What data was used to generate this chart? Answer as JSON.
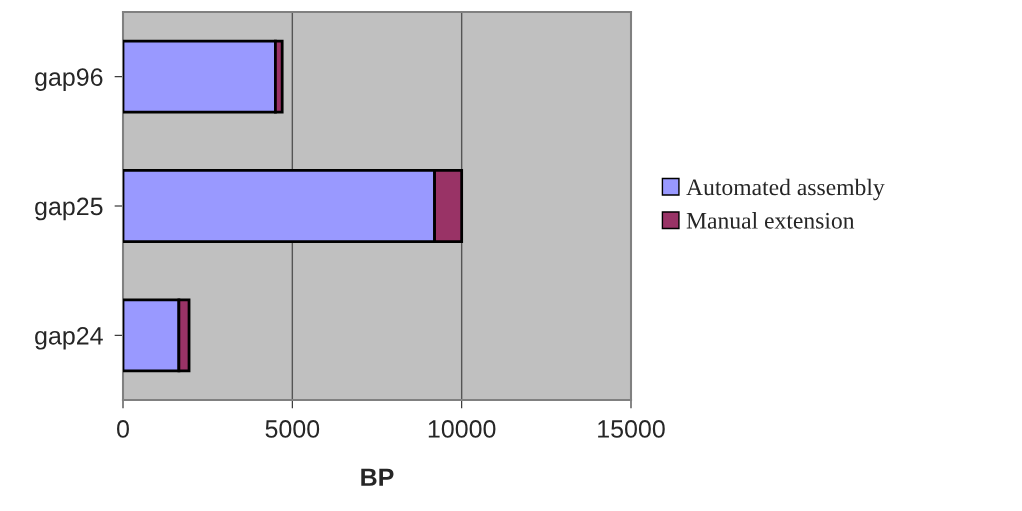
{
  "chart_data": {
    "type": "bar",
    "orientation": "horizontal",
    "stacked": true,
    "xlabel": "BP",
    "categories": [
      "gap96",
      "gap25",
      "gap24"
    ],
    "series": [
      {
        "name": "Automated assembly",
        "color": "#9999ff",
        "values": [
          4500,
          9200,
          1650
        ]
      },
      {
        "name": "Manual extension",
        "color": "#993366",
        "values": [
          200,
          800,
          300
        ]
      }
    ],
    "xlim": [
      0,
      15000
    ],
    "xticks": [
      0,
      5000,
      10000,
      15000
    ],
    "grid": "x",
    "legend": "right"
  }
}
